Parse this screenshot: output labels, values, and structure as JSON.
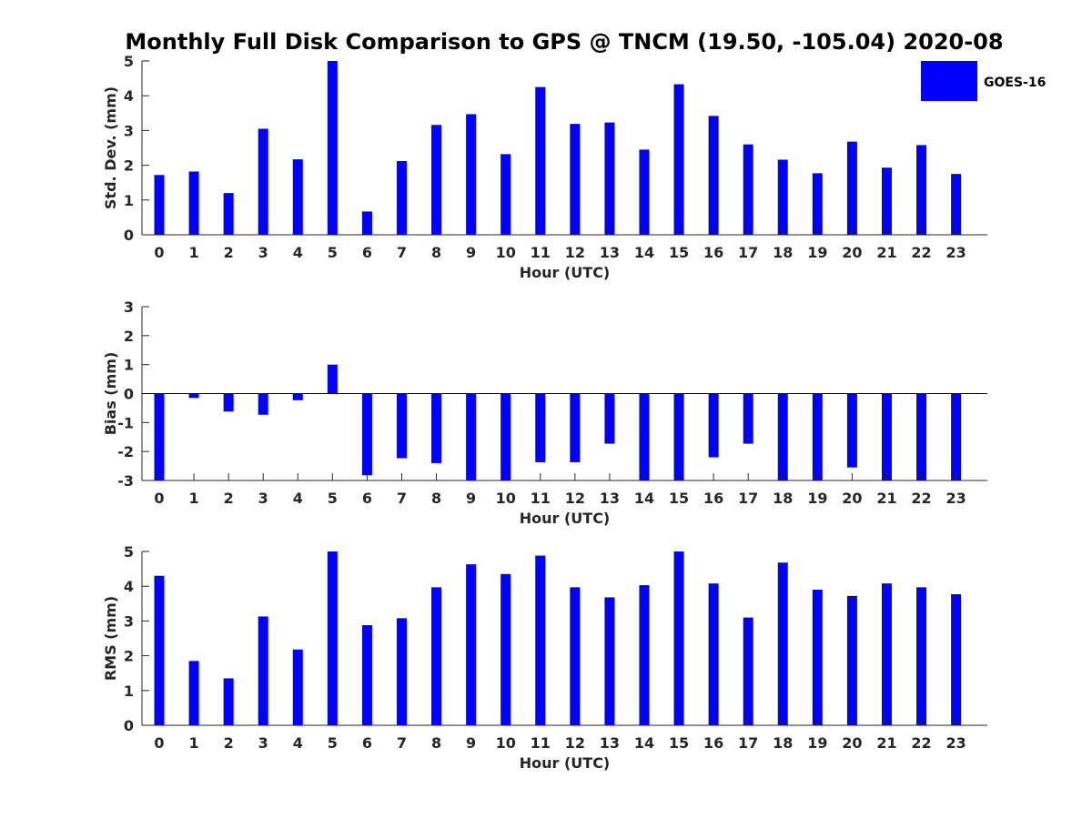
{
  "title": "Monthly Full Disk Comparison to GPS @ TNCM (19.50, -105.04) 2020-08",
  "legend": {
    "label": "GOES-16",
    "color": "#0000ff"
  },
  "chart_data": [
    {
      "type": "bar",
      "id": "std",
      "ylabel": "Std. Dev. (mm)",
      "xlabel": "Hour (UTC)",
      "ylim": [
        0,
        5
      ],
      "yticks": [
        0,
        1,
        2,
        3,
        4,
        5
      ],
      "categories": [
        "0",
        "1",
        "2",
        "3",
        "4",
        "5",
        "6",
        "7",
        "8",
        "9",
        "10",
        "11",
        "12",
        "13",
        "14",
        "15",
        "16",
        "17",
        "18",
        "19",
        "20",
        "21",
        "22",
        "23"
      ],
      "series": [
        {
          "name": "GOES-16",
          "values": [
            1.72,
            1.82,
            1.2,
            3.05,
            2.17,
            5.0,
            0.67,
            2.12,
            3.16,
            3.47,
            2.32,
            4.25,
            3.19,
            3.23,
            2.45,
            4.33,
            3.42,
            2.6,
            2.16,
            1.77,
            2.68,
            1.93,
            2.58,
            1.75
          ]
        }
      ]
    },
    {
      "type": "bar",
      "id": "bias",
      "ylabel": "Bias (mm)",
      "xlabel": "Hour (UTC)",
      "ylim": [
        -3,
        3
      ],
      "yticks": [
        -3,
        -2,
        -1,
        0,
        1,
        2,
        3
      ],
      "zero_line": true,
      "categories": [
        "0",
        "1",
        "2",
        "3",
        "4",
        "5",
        "6",
        "7",
        "8",
        "9",
        "10",
        "11",
        "12",
        "13",
        "14",
        "15",
        "16",
        "17",
        "18",
        "19",
        "20",
        "21",
        "22",
        "23"
      ],
      "series": [
        {
          "name": "GOES-16",
          "values": [
            -3.0,
            -0.15,
            -0.62,
            -0.73,
            -0.23,
            1.0,
            -2.82,
            -2.23,
            -2.4,
            -3.0,
            -3.0,
            -2.37,
            -2.37,
            -1.73,
            -3.0,
            -3.0,
            -2.2,
            -1.73,
            -3.0,
            -3.0,
            -2.55,
            -3.0,
            -3.0,
            -3.0
          ]
        }
      ]
    },
    {
      "type": "bar",
      "id": "rms",
      "ylabel": "RMS (mm)",
      "xlabel": "Hour (UTC)",
      "ylim": [
        0,
        5
      ],
      "yticks": [
        0,
        1,
        2,
        3,
        4,
        5
      ],
      "categories": [
        "0",
        "1",
        "2",
        "3",
        "4",
        "5",
        "6",
        "7",
        "8",
        "9",
        "10",
        "11",
        "12",
        "13",
        "14",
        "15",
        "16",
        "17",
        "18",
        "19",
        "20",
        "21",
        "22",
        "23"
      ],
      "series": [
        {
          "name": "GOES-16",
          "values": [
            4.3,
            1.85,
            1.35,
            3.13,
            2.18,
            5.0,
            2.88,
            3.08,
            3.97,
            4.63,
            4.35,
            4.88,
            3.97,
            3.68,
            4.03,
            5.0,
            4.08,
            3.1,
            4.68,
            3.9,
            3.72,
            4.08,
            3.97,
            3.77
          ]
        }
      ]
    }
  ]
}
